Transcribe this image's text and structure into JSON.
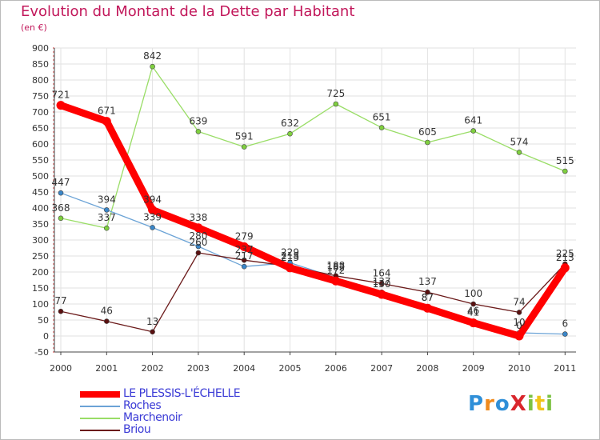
{
  "header": {
    "title": "Evolution du Montant de la Dette par Habitant",
    "subtitle": "(en €)"
  },
  "logo": {
    "text": "ProXiti"
  },
  "chart_data": {
    "type": "line",
    "title": "Evolution du Montant de la Dette par Habitant",
    "subtitle": "(en €)",
    "xlabel": "",
    "ylabel": "",
    "categories": [
      "2000",
      "2001",
      "2002",
      "2003",
      "2004",
      "2005",
      "2006",
      "2007",
      "2008",
      "2009",
      "2010",
      "2011"
    ],
    "ylim": [
      -50,
      900
    ],
    "yticks": [
      -50,
      0,
      50,
      100,
      150,
      200,
      250,
      300,
      350,
      400,
      450,
      500,
      550,
      600,
      650,
      700,
      750,
      800,
      850,
      900
    ],
    "grid": true,
    "legend_position": "bottom-left",
    "series": [
      {
        "name": "LE PLESSIS-L'ÉCHELLE",
        "color": "#ff0000",
        "values": [
          721,
          671,
          394,
          338,
          279,
          213,
          172,
          130,
          87,
          41,
          0,
          213
        ]
      },
      {
        "name": "Roches",
        "color": "#6ba3d6",
        "values": [
          447,
          394,
          339,
          280,
          217,
          229,
          182,
          137,
          87,
          46,
          10,
          6
        ]
      },
      {
        "name": "Marchenoir",
        "color": "#99dd66",
        "values": [
          368,
          337,
          842,
          639,
          591,
          632,
          725,
          651,
          605,
          641,
          574,
          515
        ]
      },
      {
        "name": "Briou",
        "color": "#6b1a1a",
        "values": [
          77,
          46,
          13,
          260,
          237,
          218,
          188,
          164,
          137,
          100,
          74,
          225
        ]
      }
    ]
  }
}
